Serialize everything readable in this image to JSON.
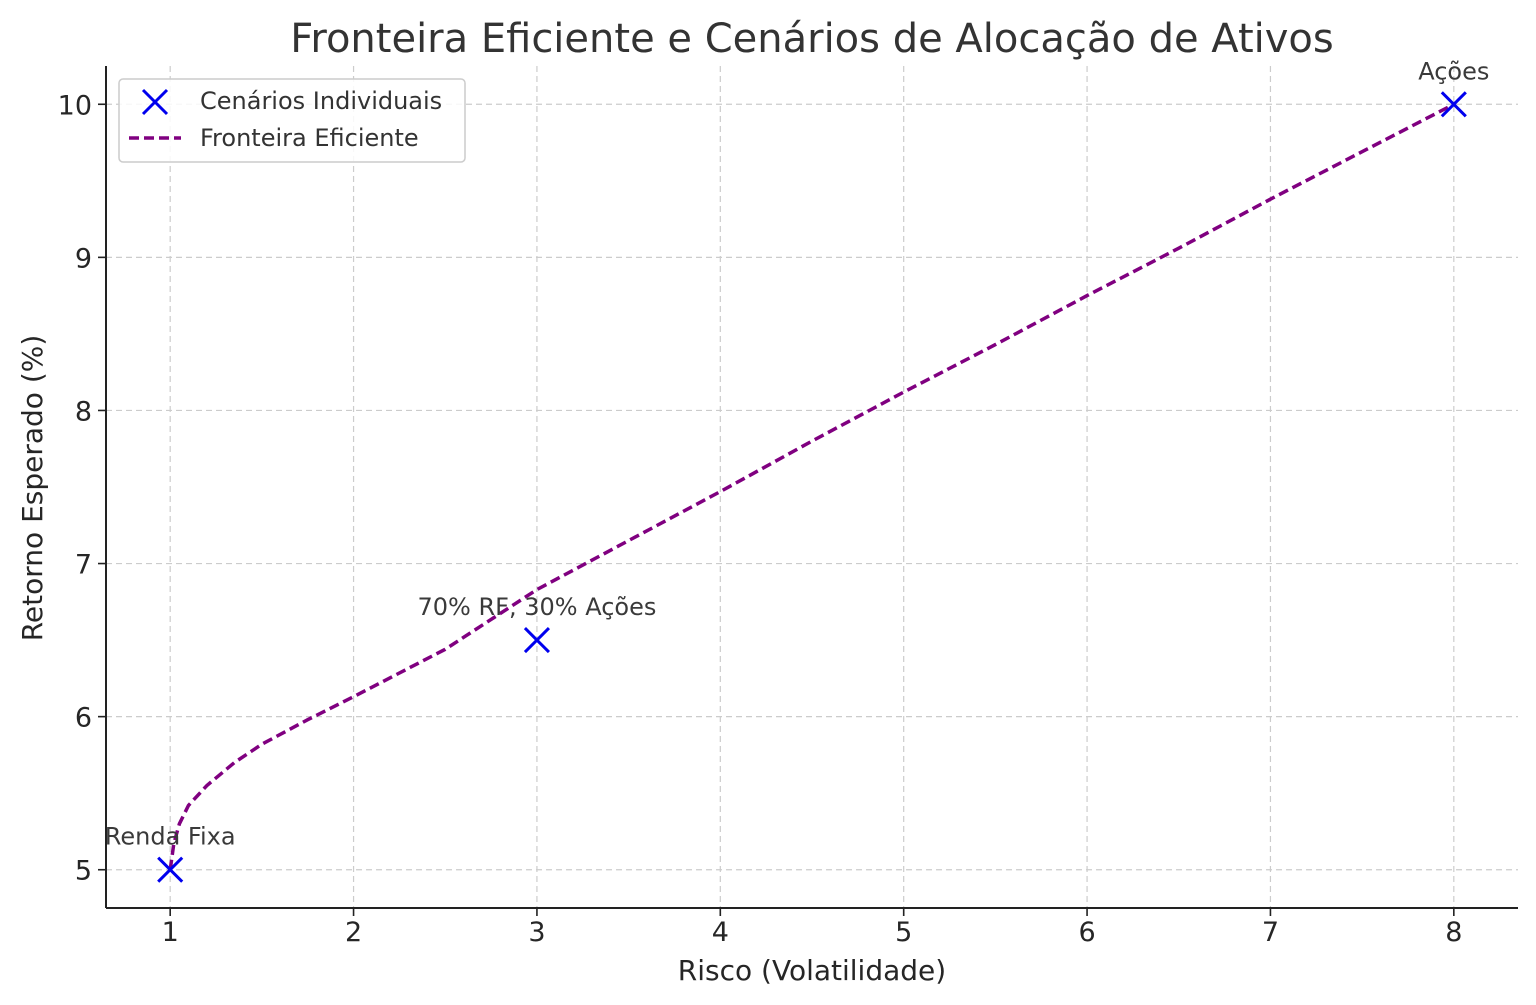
{
  "chart_data": {
    "type": "scatter",
    "title": "Fronteira Eficiente e Cenários de Alocação de Ativos",
    "xlabel": "Risco (Volatilidade)",
    "ylabel": "Retorno Esperado (%)",
    "xlim": [
      0.65,
      8.35
    ],
    "ylim": [
      4.75,
      10.25
    ],
    "xticks": [
      1,
      2,
      3,
      4,
      5,
      6,
      7,
      8
    ],
    "yticks": [
      5,
      6,
      7,
      8,
      9,
      10
    ],
    "grid": true,
    "legend_position": "top-left",
    "series": [
      {
        "name": "Cenários Individuais",
        "kind": "scatter",
        "marker": "x",
        "color": "#0000ee",
        "points": [
          {
            "x": 1,
            "y": 5,
            "label": "Renda Fixa"
          },
          {
            "x": 3,
            "y": 6.5,
            "label": "70% RF, 30% Ações"
          },
          {
            "x": 8,
            "y": 10,
            "label": "Ações"
          }
        ]
      },
      {
        "name": "Fronteira Eficiente",
        "kind": "line",
        "style": "dashed",
        "color": "#800080",
        "x": [
          1.0,
          1.02,
          1.05,
          1.1,
          1.2,
          1.35,
          1.5,
          1.75,
          2.0,
          2.5,
          3.0,
          3.5,
          4.0,
          4.5,
          5.0,
          5.5,
          6.0,
          6.5,
          7.0,
          7.5,
          8.0
        ],
        "y": [
          5.0,
          5.17,
          5.3,
          5.42,
          5.55,
          5.7,
          5.82,
          5.98,
          6.13,
          6.44,
          6.83,
          7.15,
          7.47,
          7.8,
          8.12,
          8.43,
          8.75,
          9.06,
          9.38,
          9.69,
          10.0
        ]
      }
    ]
  }
}
